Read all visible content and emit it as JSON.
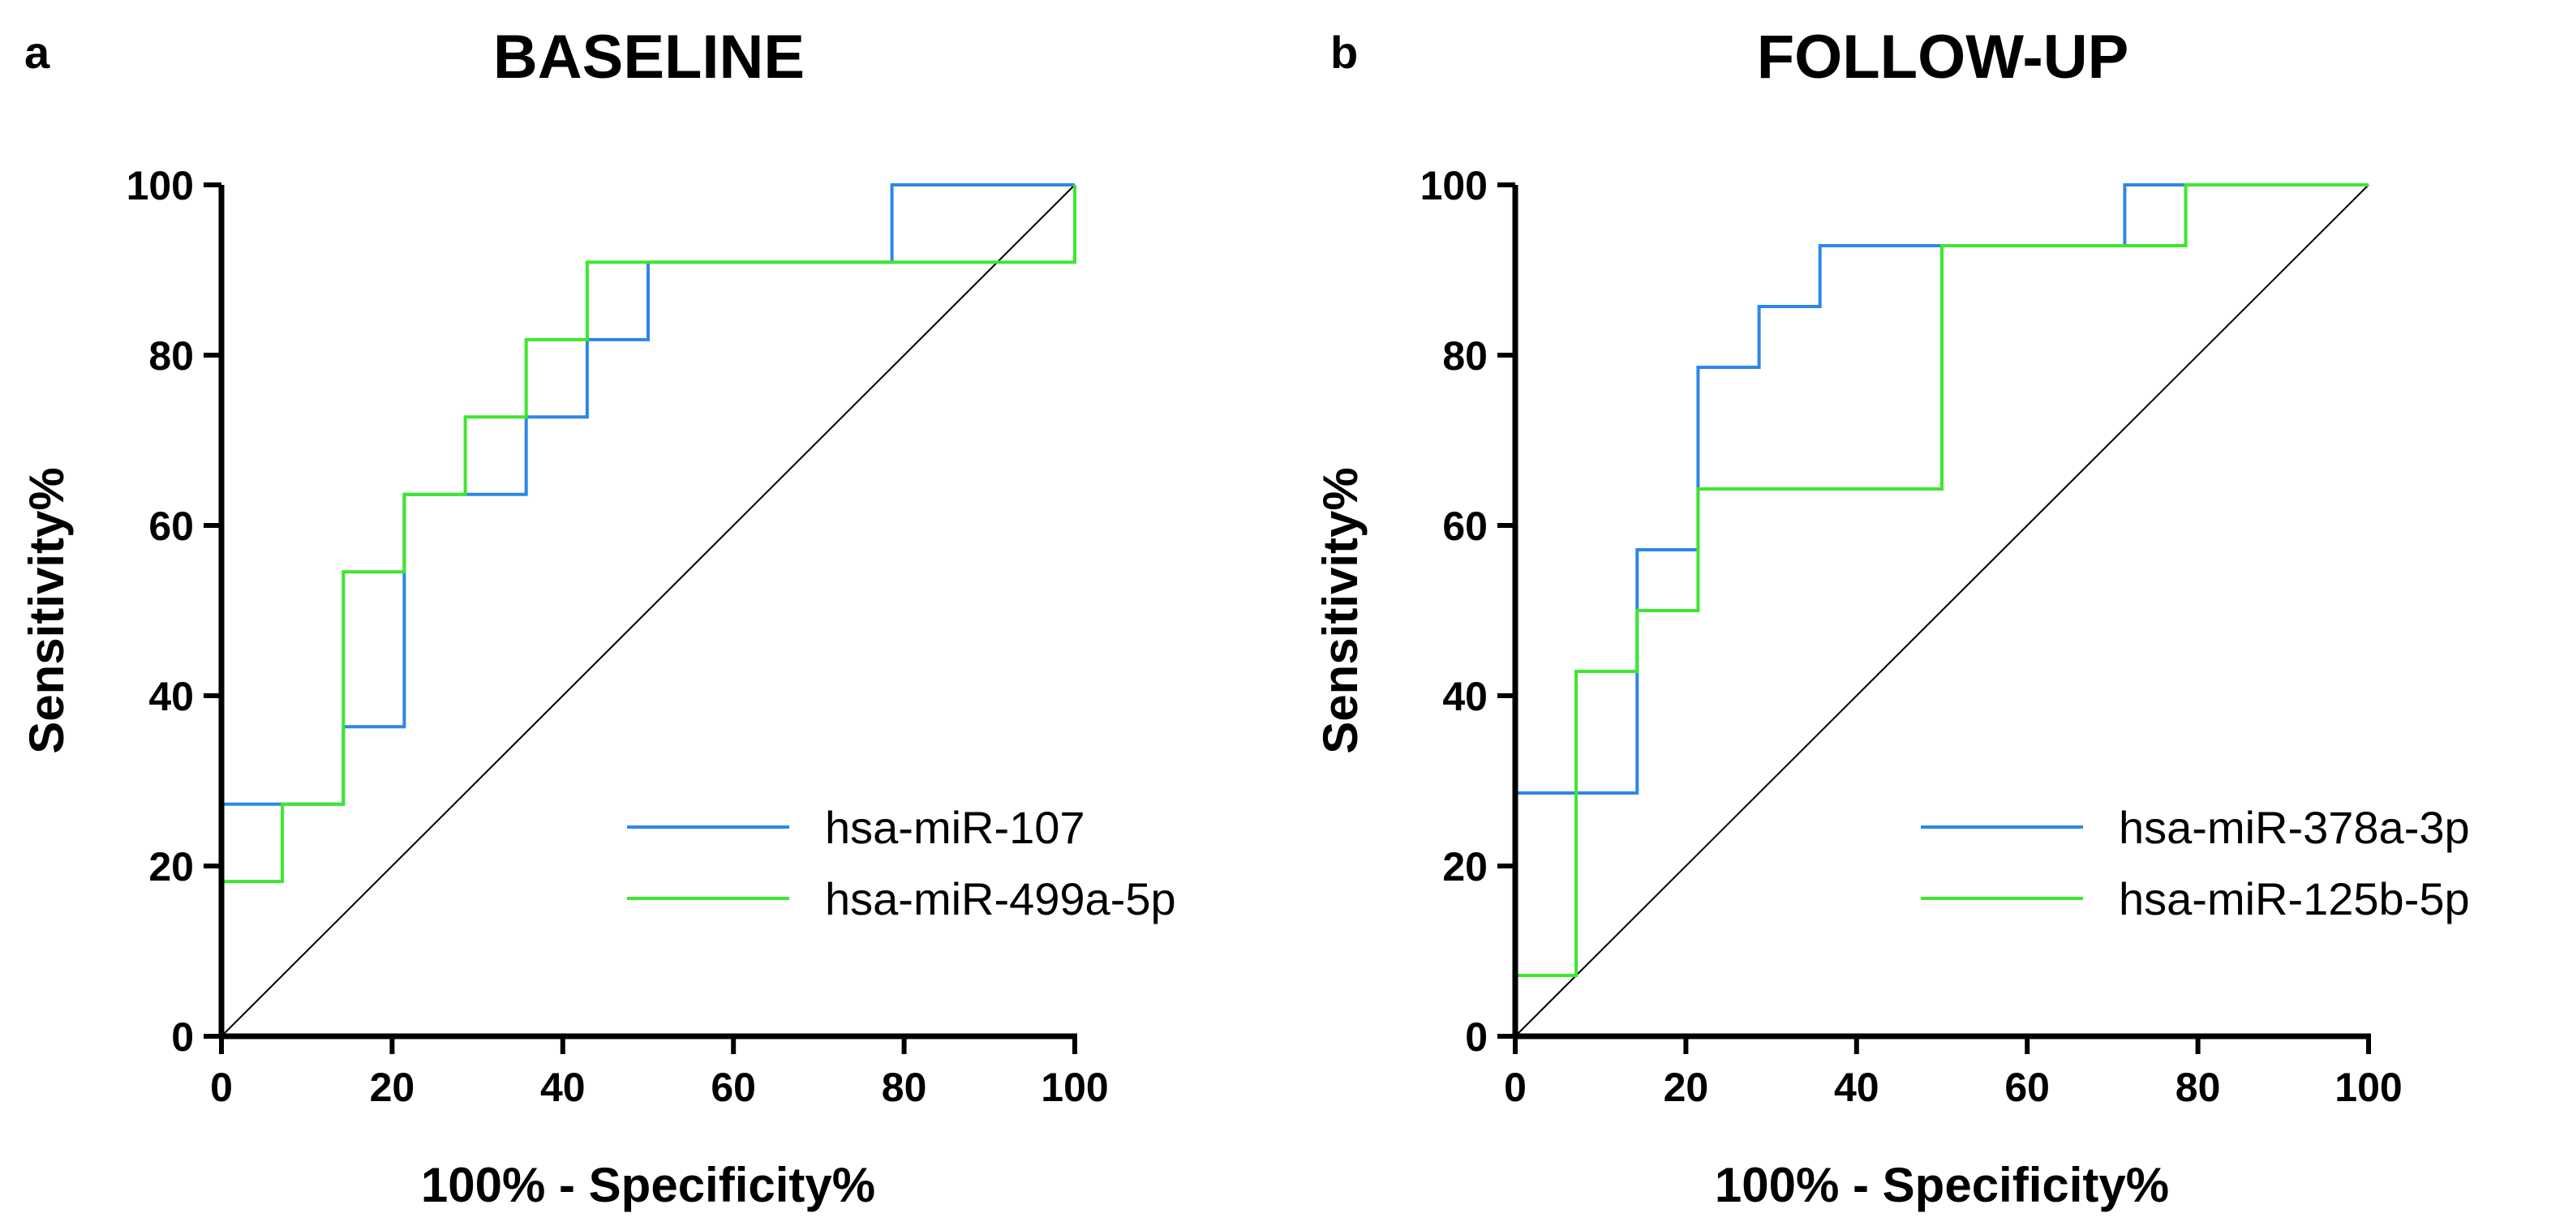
{
  "chart_data": [
    {
      "panel": "a",
      "type": "line",
      "title": "BASELINE",
      "xlabel": "100% - Specificity%",
      "ylabel": "Sensitivity%",
      "xlim": [
        0,
        100
      ],
      "ylim": [
        0,
        100
      ],
      "xticks": [
        0,
        20,
        40,
        60,
        80,
        100
      ],
      "yticks": [
        0,
        20,
        40,
        60,
        80,
        100
      ],
      "grid": false,
      "legend_position": "bottom-right",
      "reference_line": {
        "x": [
          0,
          100
        ],
        "y": [
          0,
          100
        ],
        "color": "#000000"
      },
      "series": [
        {
          "name": "hsa-miR-107",
          "color": "#2e86e8",
          "x": [
            0,
            0,
            0,
            7.14,
            7.14,
            14.29,
            14.29,
            21.43,
            21.43,
            28.57,
            28.57,
            35.71,
            35.71,
            42.86,
            42.86,
            50,
            50,
            78.57,
            78.57,
            100,
            100
          ],
          "y": [
            0,
            18.18,
            27.27,
            27.27,
            27.27,
            27.27,
            36.36,
            36.36,
            63.64,
            63.64,
            63.64,
            63.64,
            72.73,
            72.73,
            81.82,
            81.82,
            90.91,
            90.91,
            100,
            100,
            100
          ]
        },
        {
          "name": "hsa-miR-499a-5p",
          "color": "#3ee62e",
          "x": [
            0,
            0,
            7.14,
            7.14,
            14.29,
            14.29,
            21.43,
            21.43,
            28.57,
            28.57,
            35.71,
            35.71,
            42.86,
            42.86,
            100,
            100
          ],
          "y": [
            0,
            18.18,
            18.18,
            27.27,
            27.27,
            54.55,
            54.55,
            63.64,
            63.64,
            72.73,
            72.73,
            81.82,
            81.82,
            90.91,
            90.91,
            100
          ]
        }
      ]
    },
    {
      "panel": "b",
      "type": "line",
      "title": "FOLLOW-UP",
      "xlabel": "100% - Specificity%",
      "ylabel": "Sensitivity%",
      "xlim": [
        0,
        100
      ],
      "ylim": [
        0,
        100
      ],
      "xticks": [
        0,
        20,
        40,
        60,
        80,
        100
      ],
      "yticks": [
        0,
        20,
        40,
        60,
        80,
        100
      ],
      "grid": false,
      "legend_position": "bottom-right",
      "reference_line": {
        "x": [
          0,
          100
        ],
        "y": [
          0,
          100
        ],
        "color": "#000000"
      },
      "series": [
        {
          "name": "hsa-miR-378a-3p",
          "color": "#2e86e8",
          "x": [
            0,
            0,
            14.29,
            14.29,
            21.43,
            21.43,
            28.57,
            28.57,
            35.71,
            35.71,
            71.43,
            71.43,
            100
          ],
          "y": [
            0,
            28.57,
            28.57,
            57.14,
            57.14,
            78.57,
            78.57,
            85.71,
            85.71,
            92.86,
            92.86,
            100,
            100
          ]
        },
        {
          "name": "hsa-miR-125b-5p",
          "color": "#3ee62e",
          "x": [
            0,
            0,
            7.14,
            7.14,
            14.29,
            14.29,
            21.43,
            21.43,
            50,
            50,
            78.57,
            78.57,
            100
          ],
          "y": [
            0,
            7.14,
            7.14,
            42.86,
            42.86,
            50,
            50,
            64.29,
            64.29,
            92.86,
            92.86,
            100,
            100
          ]
        }
      ]
    }
  ]
}
